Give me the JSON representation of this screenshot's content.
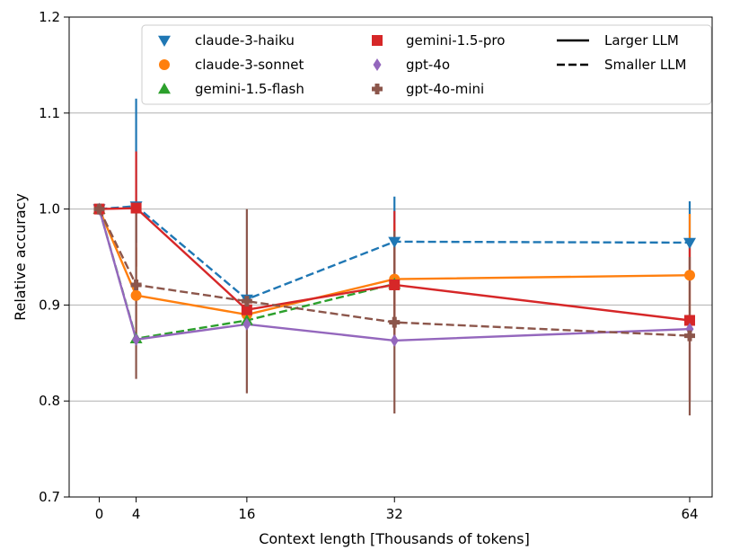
{
  "chart_data": {
    "type": "line",
    "title": "",
    "xlabel": "Context length [Thousands of tokens]",
    "ylabel": "Relative accuracy",
    "xlim": [
      -2,
      66
    ],
    "ylim": [
      0.7,
      1.2
    ],
    "xticks": [
      0,
      4,
      16,
      32,
      64
    ],
    "xtick_labels": [
      "0",
      "4",
      "16",
      "32",
      "64"
    ],
    "yticks": [
      0.7,
      0.8,
      0.9,
      1.0,
      1.1,
      1.2
    ],
    "ytick_labels": [
      "0.7",
      "0.8",
      "0.9",
      "1.0",
      "1.1",
      "1.2"
    ],
    "grid": "horizontal",
    "legend_placement": "top",
    "series": [
      {
        "name": "claude-3-haiku",
        "color": "#1f77b4",
        "marker": "triangle-down",
        "style": "dashed",
        "x": [
          0,
          4,
          16,
          32,
          64
        ],
        "y": [
          1.0,
          1.003,
          0.906,
          0.966,
          0.965
        ],
        "err_low": [
          null,
          0.965,
          null,
          0.93,
          0.93
        ],
        "err_high": [
          null,
          1.115,
          null,
          1.013,
          1.008
        ]
      },
      {
        "name": "claude-3-sonnet",
        "color": "#ff7f0e",
        "marker": "circle",
        "style": "solid",
        "x": [
          0,
          4,
          16,
          32,
          64
        ],
        "y": [
          1.0,
          0.91,
          0.89,
          0.927,
          0.931
        ],
        "err_low": [
          null,
          0.86,
          null,
          0.87,
          0.87
        ],
        "err_high": [
          null,
          0.96,
          null,
          0.985,
          0.995
        ]
      },
      {
        "name": "gemini-1.5-flash",
        "color": "#2ca02c",
        "marker": "triangle-up",
        "style": "dashed",
        "x": [
          0,
          4,
          16,
          32,
          64
        ],
        "y": [
          1.0,
          0.865,
          0.884,
          0.922,
          null
        ],
        "err_low": [
          null,
          null,
          null,
          null,
          null
        ],
        "err_high": [
          null,
          null,
          null,
          null,
          null
        ]
      },
      {
        "name": "gemini-1.5-pro",
        "color": "#d62728",
        "marker": "square",
        "style": "solid",
        "x": [
          0,
          4,
          16,
          32,
          64
        ],
        "y": [
          1.0,
          1.001,
          0.895,
          0.921,
          0.884
        ],
        "err_low": [
          null,
          0.94,
          null,
          0.86,
          0.8
        ],
        "err_high": [
          null,
          1.06,
          null,
          0.998,
          0.965
        ]
      },
      {
        "name": "gpt-4o",
        "color": "#9467bd",
        "marker": "thin-diamond",
        "style": "solid",
        "x": [
          0,
          4,
          16,
          32,
          64
        ],
        "y": [
          1.0,
          0.864,
          0.88,
          0.863,
          0.875
        ],
        "err_low": [
          null,
          null,
          null,
          null,
          null
        ],
        "err_high": [
          null,
          null,
          null,
          null,
          null
        ]
      },
      {
        "name": "gpt-4o-mini",
        "color": "#8c564b",
        "marker": "plus-filled",
        "style": "dashed",
        "x": [
          0,
          4,
          16,
          32,
          64
        ],
        "y": [
          1.0,
          0.921,
          0.904,
          0.882,
          0.868
        ],
        "err_low": [
          null,
          0.823,
          0.808,
          0.787,
          0.785
        ],
        "err_high": [
          null,
          1.003,
          1.0,
          0.977,
          0.95
        ]
      }
    ],
    "style_legend": [
      {
        "label": "Larger LLM",
        "style": "solid"
      },
      {
        "label": "Smaller LLM",
        "style": "dashed"
      }
    ]
  }
}
